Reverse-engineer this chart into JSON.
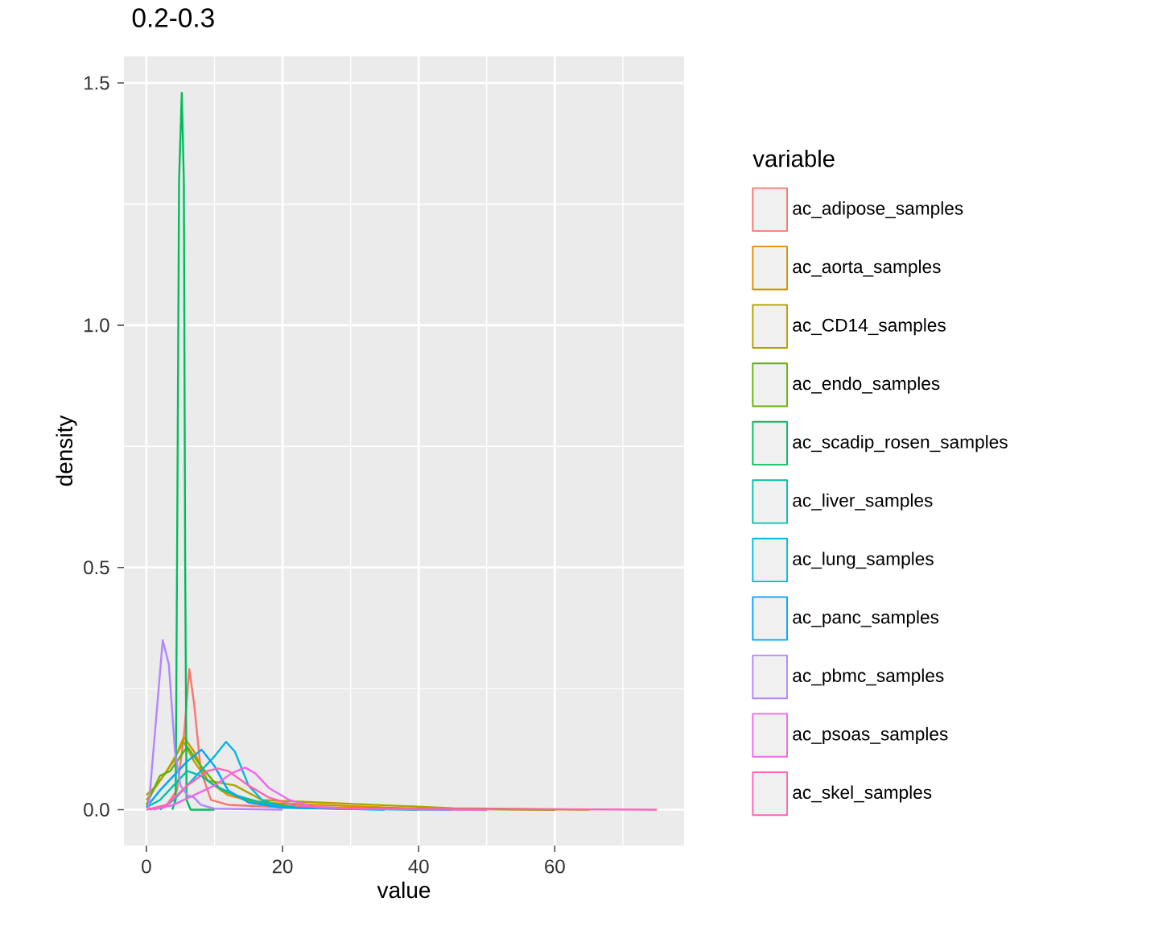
{
  "chart_data": {
    "type": "line",
    "title": "0.2-0.3",
    "xlabel": "value",
    "ylabel": "density",
    "legend_title": "variable",
    "legend": "right",
    "grid": true,
    "xlim": [
      -3.3,
      79
    ],
    "ylim": [
      -0.074,
      1.555
    ],
    "xticks": [
      0,
      20,
      40,
      60
    ],
    "yticks": [
      {
        "value": 0,
        "label": "0.0"
      },
      {
        "value": 0.5,
        "label": "0.5"
      },
      {
        "value": 1.0,
        "label": "1.0"
      },
      {
        "value": 1.5,
        "label": "1.5"
      }
    ],
    "series": [
      {
        "name": "ac_adipose_samples",
        "color": "#F8766D",
        "x": [
          0.5,
          3,
          4.5,
          5.5,
          6.3,
          7,
          8,
          9.5,
          12,
          20,
          30,
          50
        ],
        "values": [
          0,
          0.01,
          0.04,
          0.15,
          0.29,
          0.22,
          0.08,
          0.02,
          0.01,
          0.005,
          0.002,
          0
        ]
      },
      {
        "name": "ac_aorta_samples",
        "color": "#DB8E00",
        "x": [
          0,
          2,
          4,
          5.5,
          7,
          9,
          12,
          16,
          40,
          60
        ],
        "values": [
          0.02,
          0.06,
          0.1,
          0.15,
          0.12,
          0.06,
          0.03,
          0.015,
          0.002,
          0
        ]
      },
      {
        "name": "ac_CD14_samples",
        "color": "#AEA200",
        "x": [
          0,
          1.5,
          3,
          5.5,
          7,
          9,
          13,
          17,
          45,
          65
        ],
        "values": [
          0.03,
          0.05,
          0.08,
          0.14,
          0.1,
          0.06,
          0.05,
          0.02,
          0.003,
          0
        ]
      },
      {
        "name": "ac_endo_samples",
        "color": "#64B200",
        "x": [
          0,
          2,
          3.5,
          6,
          8,
          11,
          15,
          22,
          40,
          60
        ],
        "values": [
          0.01,
          0.07,
          0.08,
          0.13,
          0.09,
          0.04,
          0.02,
          0.005,
          0.002,
          0
        ]
      },
      {
        "name": "ac_scadip_rosen_samples",
        "color": "#00BD5C",
        "x": [
          3.8,
          4.3,
          4.5,
          4.8,
          5.2,
          5.5,
          5.7,
          5.9,
          6.5,
          10
        ],
        "values": [
          0,
          0.02,
          0.5,
          1.3,
          1.48,
          1.3,
          0.5,
          0.02,
          0,
          0
        ]
      },
      {
        "name": "ac_liver_samples",
        "color": "#00C1A7",
        "x": [
          0,
          2,
          4,
          6,
          8,
          10,
          13,
          18,
          25,
          40
        ],
        "values": [
          0.005,
          0.02,
          0.05,
          0.08,
          0.07,
          0.05,
          0.03,
          0.01,
          0.003,
          0
        ]
      },
      {
        "name": "ac_lung_samples",
        "color": "#00BADE",
        "x": [
          2,
          4,
          6,
          8,
          10,
          11.7,
          13,
          15,
          17,
          20,
          30,
          45
        ],
        "values": [
          0,
          0.02,
          0.05,
          0.08,
          0.11,
          0.14,
          0.12,
          0.05,
          0.02,
          0.005,
          0.001,
          0
        ]
      },
      {
        "name": "ac_panc_samples",
        "color": "#00A6FF",
        "x": [
          0,
          2,
          4,
          6,
          8.1,
          10,
          12,
          15,
          20,
          35
        ],
        "values": [
          0.005,
          0.04,
          0.07,
          0.1,
          0.124,
          0.09,
          0.04,
          0.015,
          0.004,
          0
        ]
      },
      {
        "name": "ac_pbmc_samples",
        "color": "#B385FF",
        "x": [
          0.3,
          1.2,
          2.4,
          3.3,
          4.2,
          5,
          6,
          7,
          8,
          10,
          20
        ],
        "values": [
          0,
          0.15,
          0.35,
          0.3,
          0.12,
          0.05,
          0.03,
          0.025,
          0.01,
          0.002,
          0
        ]
      },
      {
        "name": "ac_psoas_samples",
        "color": "#EF67EB",
        "x": [
          1,
          4,
          7,
          10,
          12.5,
          14.5,
          16,
          18,
          21,
          25,
          35,
          50
        ],
        "values": [
          0,
          0.01,
          0.03,
          0.05,
          0.075,
          0.087,
          0.075,
          0.045,
          0.02,
          0.005,
          0.001,
          0
        ]
      },
      {
        "name": "ac_skel_samples",
        "color": "#FF63B6",
        "x": [
          0,
          3,
          6,
          9,
          10.5,
          12,
          15,
          18,
          22,
          30,
          75
        ],
        "values": [
          0,
          0.01,
          0.05,
          0.08,
          0.085,
          0.08,
          0.05,
          0.025,
          0.008,
          0.002,
          0
        ]
      }
    ]
  }
}
